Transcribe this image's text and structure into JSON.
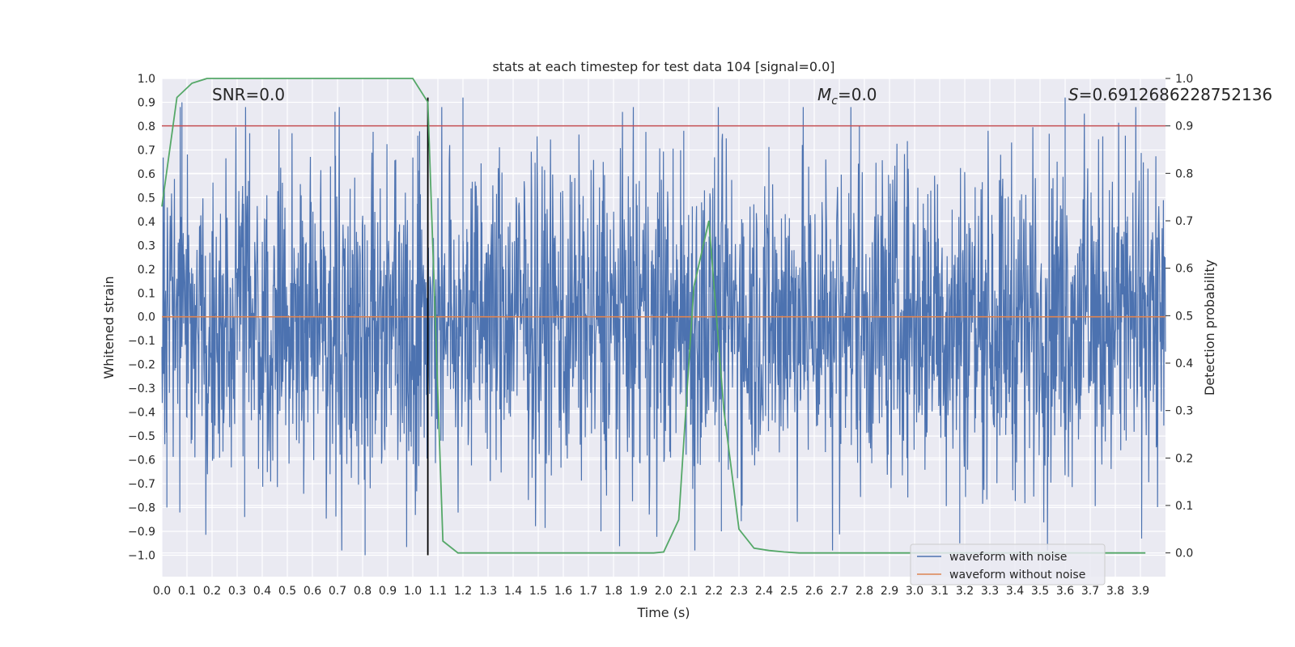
{
  "chart_data": {
    "type": "line",
    "title": "stats at each timestep for test data 104 [signal=0.0]",
    "xlabel": "Time (s)",
    "ylabel": "Whitened strain",
    "y2label": "Detection probability",
    "xlim": [
      0.0,
      4.0
    ],
    "ylim": [
      -1.09,
      1.0
    ],
    "y2lim": [
      -0.05,
      1.0
    ],
    "x_ticks": [
      "0.0",
      "0.1",
      "0.2",
      "0.3",
      "0.4",
      "0.5",
      "0.6",
      "0.7",
      "0.8",
      "0.9",
      "1.0",
      "1.1",
      "1.2",
      "1.3",
      "1.4",
      "1.5",
      "1.6",
      "1.7",
      "1.8",
      "1.9",
      "2.0",
      "2.1",
      "2.2",
      "2.3",
      "2.4",
      "2.5",
      "2.6",
      "2.7",
      "2.8",
      "2.9",
      "3.0",
      "3.1",
      "3.2",
      "3.3",
      "3.4",
      "3.5",
      "3.6",
      "3.7",
      "3.8",
      "3.9"
    ],
    "y_ticks": [
      "1.0",
      "0.9",
      "0.8",
      "0.7",
      "0.6",
      "0.5",
      "0.4",
      "0.3",
      "0.2",
      "0.1",
      "0.0",
      "−0.1",
      "−0.2",
      "−0.3",
      "−0.4",
      "−0.5",
      "−0.6",
      "−0.7",
      "−0.8",
      "−0.9",
      "−1.0"
    ],
    "y2_ticks": [
      "1.0",
      "0.9",
      "0.8",
      "0.7",
      "0.6",
      "0.5",
      "0.4",
      "0.3",
      "0.2",
      "0.1",
      "0.0"
    ],
    "grid": true,
    "legend_position": "bottom-right",
    "series": [
      {
        "name": "waveform with noise",
        "color": "#4c72b0",
        "axis": "left",
        "noise_amplitude": 0.25,
        "spikes": [
          {
            "x": 0.01,
            "y": 0.53
          },
          {
            "x": 0.02,
            "y": -0.8
          },
          {
            "x": 0.08,
            "y": 0.9
          },
          {
            "x": 0.33,
            "y": -0.84
          },
          {
            "x": 0.35,
            "y": 0.77
          },
          {
            "x": 0.69,
            "y": 0.86
          },
          {
            "x": 0.81,
            "y": -1.0
          },
          {
            "x": 1.02,
            "y": 0.76
          },
          {
            "x": 1.2,
            "y": 0.92
          },
          {
            "x": 1.75,
            "y": -0.9
          },
          {
            "x": 2.08,
            "y": 0.78
          },
          {
            "x": 2.23,
            "y": -0.9
          },
          {
            "x": 2.78,
            "y": 0.8
          },
          {
            "x": 3.18,
            "y": -0.95
          },
          {
            "x": 3.6,
            "y": 0.92
          },
          {
            "x": 3.84,
            "y": 0.76
          }
        ]
      },
      {
        "name": "waveform without noise",
        "color": "#dd8452",
        "axis": "left",
        "x": [
          0.0,
          4.0
        ],
        "y": [
          0.0,
          0.0
        ]
      },
      {
        "name": "",
        "color": "#55a868",
        "axis": "right",
        "x": [
          0.0,
          0.06,
          0.12,
          0.18,
          0.24,
          0.3,
          0.36,
          0.42,
          0.48,
          0.54,
          0.6,
          0.66,
          0.72,
          0.78,
          0.84,
          0.9,
          0.96,
          1.0,
          1.06,
          1.12,
          1.18,
          1.24,
          1.3,
          1.36,
          1.42,
          1.48,
          1.54,
          1.6,
          1.66,
          1.72,
          1.78,
          1.84,
          1.9,
          1.96,
          2.0,
          2.06,
          2.12,
          2.18,
          2.24,
          2.3,
          2.36,
          2.42,
          2.48,
          2.54,
          2.6,
          2.66,
          2.72,
          2.78,
          2.84,
          2.9,
          2.96,
          3.02,
          3.08,
          3.14,
          3.2,
          3.26,
          3.32,
          3.38,
          3.44,
          3.5,
          3.56,
          3.62,
          3.68,
          3.74,
          3.8,
          3.86,
          3.92
        ],
        "y": [
          0.73,
          0.96,
          0.99,
          1.0,
          1.0,
          1.0,
          1.0,
          1.0,
          1.0,
          1.0,
          1.0,
          1.0,
          1.0,
          1.0,
          1.0,
          1.0,
          1.0,
          1.0,
          0.95,
          0.025,
          0.0,
          0.0,
          0.0,
          0.0,
          0.0,
          0.0,
          0.0,
          0.0,
          0.0,
          0.0,
          0.0,
          0.0,
          0.0,
          0.0,
          0.002,
          0.07,
          0.56,
          0.7,
          0.3,
          0.05,
          0.01,
          0.005,
          0.002,
          0.0,
          0.0,
          0.0,
          0.0,
          0.0,
          0.0,
          0.0,
          0.0,
          0.0,
          0.0,
          0.0,
          0.0,
          0.0,
          0.0,
          0.0,
          0.0,
          0.0,
          0.0,
          0.0,
          0.0,
          0.0,
          0.0,
          0.0,
          0.0
        ]
      }
    ],
    "threshold": {
      "color": "#c44e52",
      "axis": "right",
      "y": 0.9
    },
    "marker_line": {
      "color": "#000000",
      "x": 1.06,
      "y_from": -1.0,
      "y_to": 0.92
    },
    "annotations": {
      "snr": "SNR=0.0",
      "mc_symbol": "M",
      "mc_sub": "c",
      "mc_value": "=0.0",
      "s_symbol": "S",
      "s_value": "=0.6912686228752136"
    }
  }
}
